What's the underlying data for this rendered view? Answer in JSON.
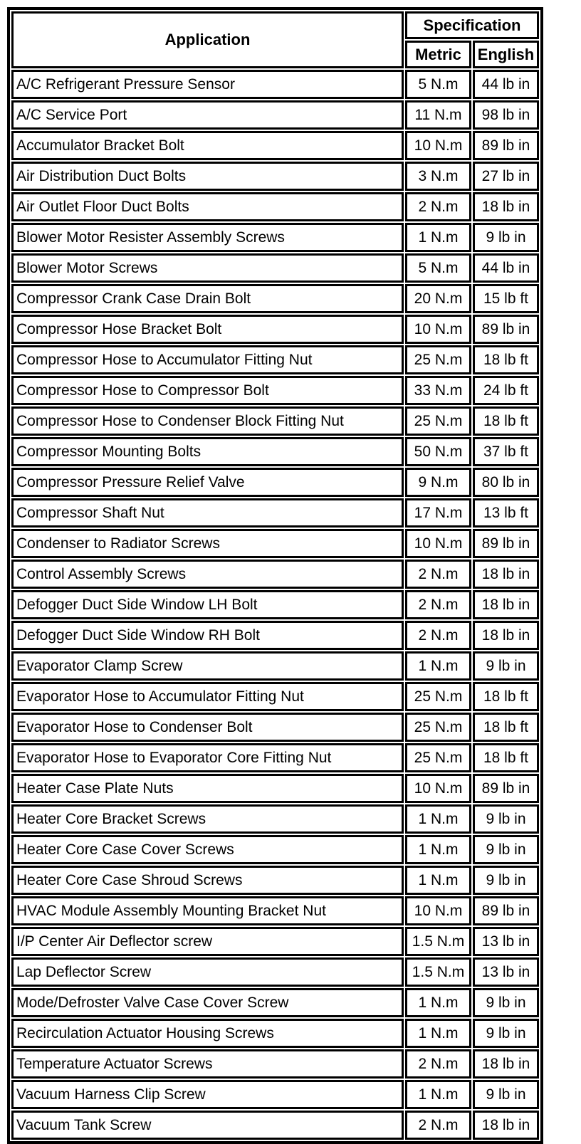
{
  "table": {
    "header": {
      "application": "Application",
      "specification": "Specification",
      "metric": "Metric",
      "english": "English"
    },
    "rows": [
      {
        "application": "A/C Refrigerant Pressure Sensor",
        "metric": "5 N.m",
        "english": "44 lb in"
      },
      {
        "application": "A/C Service Port",
        "metric": "11 N.m",
        "english": "98 lb in"
      },
      {
        "application": "Accumulator Bracket Bolt",
        "metric": "10 N.m",
        "english": "89 lb in"
      },
      {
        "application": "Air Distribution Duct Bolts",
        "metric": "3 N.m",
        "english": "27 lb in"
      },
      {
        "application": "Air Outlet Floor Duct Bolts",
        "metric": "2 N.m",
        "english": "18 lb in"
      },
      {
        "application": "Blower Motor Resister Assembly Screws",
        "metric": "1 N.m",
        "english": "9 lb in"
      },
      {
        "application": "Blower Motor Screws",
        "metric": "5 N.m",
        "english": "44 lb in"
      },
      {
        "application": "Compressor Crank Case Drain Bolt",
        "metric": "20 N.m",
        "english": "15 lb ft"
      },
      {
        "application": "Compressor Hose Bracket Bolt",
        "metric": "10 N.m",
        "english": "89 lb in"
      },
      {
        "application": "Compressor Hose to Accumulator Fitting Nut",
        "metric": "25 N.m",
        "english": "18 lb ft"
      },
      {
        "application": "Compressor Hose to Compressor Bolt",
        "metric": "33 N.m",
        "english": "24 lb ft"
      },
      {
        "application": "Compressor Hose to Condenser Block Fitting Nut",
        "metric": "25 N.m",
        "english": "18 lb ft"
      },
      {
        "application": "Compressor Mounting Bolts",
        "metric": "50 N.m",
        "english": "37 lb ft"
      },
      {
        "application": "Compressor Pressure Relief Valve",
        "metric": "9 N.m",
        "english": "80 lb in"
      },
      {
        "application": "Compressor Shaft Nut",
        "metric": "17 N.m",
        "english": "13 lb ft"
      },
      {
        "application": "Condenser to Radiator Screws",
        "metric": "10 N.m",
        "english": "89 lb in"
      },
      {
        "application": "Control Assembly Screws",
        "metric": "2 N.m",
        "english": "18 lb in"
      },
      {
        "application": "Defogger Duct Side Window LH Bolt",
        "metric": "2 N.m",
        "english": "18 lb in"
      },
      {
        "application": "Defogger Duct Side Window RH Bolt",
        "metric": "2 N.m",
        "english": "18 lb in"
      },
      {
        "application": "Evaporator Clamp Screw",
        "metric": "1 N.m",
        "english": "9 lb in"
      },
      {
        "application": "Evaporator Hose to Accumulator Fitting Nut",
        "metric": "25 N.m",
        "english": "18 lb ft"
      },
      {
        "application": "Evaporator Hose to Condenser Bolt",
        "metric": "25 N.m",
        "english": "18 lb ft"
      },
      {
        "application": "Evaporator Hose to Evaporator Core Fitting Nut",
        "metric": "25 N.m",
        "english": "18 lb ft"
      },
      {
        "application": "Heater Case Plate Nuts",
        "metric": "10 N.m",
        "english": "89 lb in"
      },
      {
        "application": "Heater Core Bracket Screws",
        "metric": "1 N.m",
        "english": "9 lb in"
      },
      {
        "application": "Heater Core Case Cover Screws",
        "metric": "1 N.m",
        "english": "9 lb in"
      },
      {
        "application": "Heater Core Case Shroud Screws",
        "metric": "1 N.m",
        "english": "9 lb in"
      },
      {
        "application": "HVAC Module Assembly Mounting Bracket Nut",
        "metric": "10 N.m",
        "english": "89 lb in"
      },
      {
        "application": "I/P Center Air Deflector screw",
        "metric": "1.5 N.m",
        "english": "13 lb in"
      },
      {
        "application": "Lap Deflector Screw",
        "metric": "1.5 N.m",
        "english": "13 lb in"
      },
      {
        "application": "Mode/Defroster Valve Case Cover Screw",
        "metric": "1 N.m",
        "english": "9 lb in"
      },
      {
        "application": "Recirculation Actuator Housing Screws",
        "metric": "1 N.m",
        "english": "9 lb in"
      },
      {
        "application": "Temperature Actuator Screws",
        "metric": "2 N.m",
        "english": "18 lb in"
      },
      {
        "application": "Vacuum Harness Clip Screw",
        "metric": "1 N.m",
        "english": "9 lb in"
      },
      {
        "application": "Vacuum Tank Screw",
        "metric": "2 N.m",
        "english": "18 lb in"
      }
    ]
  },
  "colors": {
    "border": "#000000",
    "background": "#ffffff",
    "text": "#000000"
  }
}
